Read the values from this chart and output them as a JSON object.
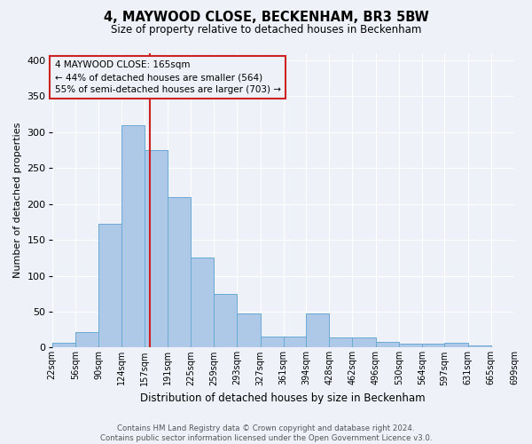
{
  "title": "4, MAYWOOD CLOSE, BECKENHAM, BR3 5BW",
  "subtitle": "Size of property relative to detached houses in Beckenham",
  "bar_edges": [
    22,
    56,
    90,
    124,
    157,
    191,
    225,
    259,
    293,
    327,
    361,
    394,
    428,
    462,
    496,
    530,
    564,
    597,
    631,
    665,
    699
  ],
  "bar_heights": [
    7,
    21,
    172,
    310,
    275,
    210,
    126,
    75,
    48,
    15,
    15,
    48,
    14,
    14,
    8,
    5,
    5,
    7,
    3,
    0
  ],
  "bar_color": "#aec9e8",
  "bar_edge_color": "#6aaad4",
  "property_size": 165,
  "vline_color": "#cc2222",
  "xlabel": "Distribution of detached houses by size in Beckenham",
  "ylabel": "Number of detached properties",
  "ylim": [
    0,
    410
  ],
  "yticks": [
    0,
    50,
    100,
    150,
    200,
    250,
    300,
    350,
    400
  ],
  "annotation_title": "4 MAYWOOD CLOSE: 165sqm",
  "annotation_line1": "← 44% of detached houses are smaller (564)",
  "annotation_line2": "55% of semi-detached houses are larger (703) →",
  "annotation_box_color": "#cc2222",
  "tick_labels": [
    "22sqm",
    "56sqm",
    "90sqm",
    "124sqm",
    "157sqm",
    "191sqm",
    "225sqm",
    "259sqm",
    "293sqm",
    "327sqm",
    "361sqm",
    "394sqm",
    "428sqm",
    "462sqm",
    "496sqm",
    "530sqm",
    "564sqm",
    "597sqm",
    "631sqm",
    "665sqm",
    "699sqm"
  ],
  "footer_line1": "Contains HM Land Registry data © Crown copyright and database right 2024.",
  "footer_line2": "Contains public sector information licensed under the Open Government Licence v3.0.",
  "background_color": "#eef2f8",
  "grid_color": "#ffffff"
}
